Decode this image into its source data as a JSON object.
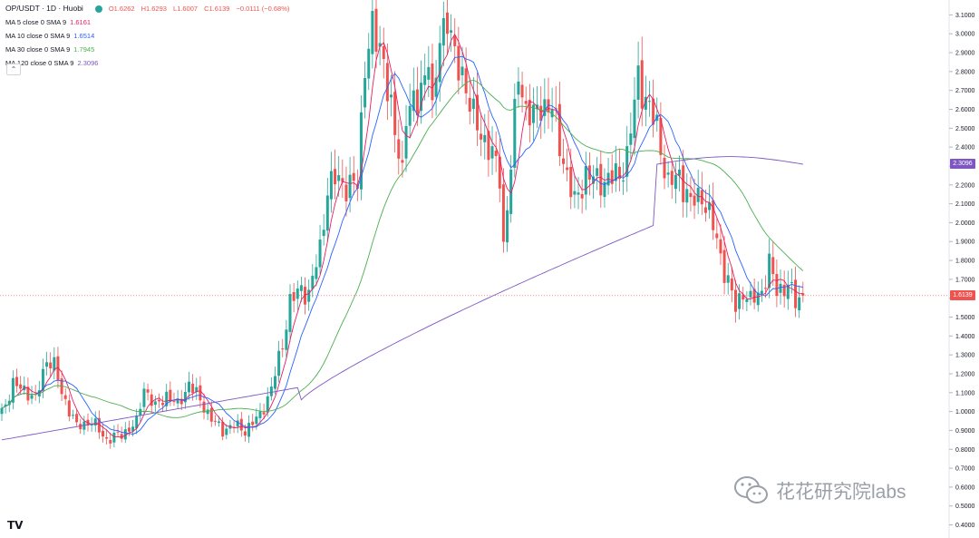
{
  "header": {
    "symbol": "OP/USDT · 1D · Huobi",
    "open": "O1.6262",
    "high": "H1.6293",
    "low": "L1.6007",
    "close": "C1.6139",
    "change": "−0.0111 (−0.68%)"
  },
  "indicators": [
    {
      "label": "MA 5 close 0 SMA 9",
      "value": "1.6161",
      "color": "#e91e63"
    },
    {
      "label": "MA 10 close 0 SMA 9",
      "value": "1.6514",
      "color": "#2962ff"
    },
    {
      "label": "MA 30 close 0 SMA 9",
      "value": "1.7945",
      "color": "#4caf50"
    },
    {
      "label": "MA 120 close 0 SMA 9",
      "value": "2.3096",
      "color": "#7e57c2"
    }
  ],
  "price_tags": [
    {
      "value": "2.3096",
      "color": "#7e57c2"
    },
    {
      "value": "1.6139",
      "color": "#ef5350"
    }
  ],
  "collapse_icon": "chevron-up-icon",
  "watermark": "花花研究院labs",
  "branding": "TradingView",
  "chart_data": {
    "type": "candlestick",
    "ylim": [
      0.35,
      3.15
    ],
    "y_ticks": [
      "0.4000",
      "0.5000",
      "0.6000",
      "0.7000",
      "0.8000",
      "0.9000",
      "1.0000",
      "1.1000",
      "1.2000",
      "1.3000",
      "1.4000",
      "1.5000",
      "1.6000",
      "1.7000",
      "1.8000",
      "1.9000",
      "2.0000",
      "2.1000",
      "2.2000",
      "2.3000",
      "2.4000",
      "2.5000",
      "2.6000",
      "2.7000",
      "2.8000",
      "2.9000",
      "3.0000",
      "3.1000"
    ],
    "last_price": 1.6139,
    "up_color": "#26a69a",
    "down_color": "#ef5350",
    "close_anchors": [
      [
        0,
        1.0
      ],
      [
        3,
        1.14
      ],
      [
        6,
        1.12
      ],
      [
        9,
        1.06
      ],
      [
        12,
        1.28
      ],
      [
        14,
        1.24
      ],
      [
        16,
        1.1
      ],
      [
        20,
        0.92
      ],
      [
        24,
        0.95
      ],
      [
        28,
        0.85
      ],
      [
        32,
        0.88
      ],
      [
        36,
        0.94
      ],
      [
        38,
        1.13
      ],
      [
        41,
        1.02
      ],
      [
        44,
        1.09
      ],
      [
        47,
        1.03
      ],
      [
        50,
        1.15
      ],
      [
        53,
        1.06
      ],
      [
        56,
        0.96
      ],
      [
        59,
        0.9
      ],
      [
        62,
        0.93
      ],
      [
        65,
        0.9
      ],
      [
        69,
        0.98
      ],
      [
        72,
        1.12
      ],
      [
        75,
        1.36
      ],
      [
        77,
        1.58
      ],
      [
        80,
        1.65
      ],
      [
        82,
        1.62
      ],
      [
        85,
        1.86
      ],
      [
        87,
        2.18
      ],
      [
        89,
        2.23
      ],
      [
        92,
        2.2
      ],
      [
        95,
        2.2
      ],
      [
        97,
        2.86
      ],
      [
        99,
        3.02
      ],
      [
        100,
        2.95
      ],
      [
        102,
        2.88
      ],
      [
        105,
        2.45
      ],
      [
        107,
        2.28
      ],
      [
        108,
        2.6
      ],
      [
        111,
        2.62
      ],
      [
        114,
        2.9
      ],
      [
        115,
        2.55
      ],
      [
        117,
        2.99
      ],
      [
        119,
        3.1
      ],
      [
        121,
        2.85
      ],
      [
        123,
        2.8
      ],
      [
        126,
        2.55
      ],
      [
        130,
        2.4
      ],
      [
        133,
        2.25
      ],
      [
        134,
        1.88
      ],
      [
        136,
        2.3
      ],
      [
        138,
        2.8
      ],
      [
        140,
        2.6
      ],
      [
        142,
        2.55
      ],
      [
        144,
        2.63
      ],
      [
        147,
        2.6
      ],
      [
        149,
        2.42
      ],
      [
        151,
        2.25
      ],
      [
        153,
        2.1
      ],
      [
        156,
        2.26
      ],
      [
        159,
        2.22
      ],
      [
        162,
        2.23
      ],
      [
        165,
        2.25
      ],
      [
        167,
        2.35
      ],
      [
        170,
        2.77
      ],
      [
        173,
        2.6
      ],
      [
        175,
        2.5
      ],
      [
        178,
        2.2
      ],
      [
        181,
        2.25
      ],
      [
        184,
        2.1
      ],
      [
        187,
        2.15
      ],
      [
        190,
        1.98
      ],
      [
        193,
        1.75
      ],
      [
        196,
        1.55
      ],
      [
        198,
        1.64
      ],
      [
        200,
        1.58
      ],
      [
        203,
        1.64
      ],
      [
        205,
        1.78
      ],
      [
        207,
        1.64
      ],
      [
        210,
        1.67
      ],
      [
        212,
        1.58
      ],
      [
        214,
        1.6139
      ]
    ],
    "ma_series": [
      {
        "name": "MA 5 close 0 SMA 9",
        "period": 5,
        "color": "#e91e63"
      },
      {
        "name": "MA 10 close 0 SMA 9",
        "period": 10,
        "color": "#2962ff"
      },
      {
        "name": "MA 30 close 0 SMA 9",
        "period": 30,
        "color": "#4caf50"
      },
      {
        "name": "MA 120 close 0 SMA 9",
        "period": 120,
        "color": "#7e57c2"
      }
    ]
  }
}
